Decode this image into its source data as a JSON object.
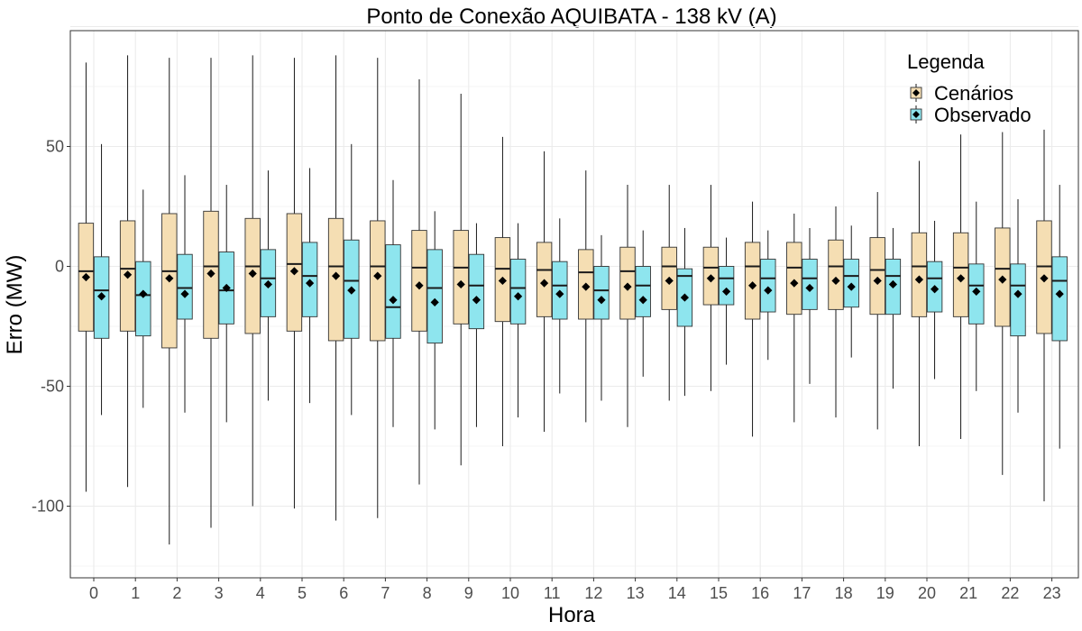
{
  "chart_data": {
    "type": "boxplot",
    "title": "Ponto de Conexão AQUIBATA - 138 kV (A)",
    "xlabel": "Hora",
    "ylabel": "Erro (MW)",
    "categories": [
      "0",
      "1",
      "2",
      "3",
      "4",
      "5",
      "6",
      "7",
      "8",
      "9",
      "10",
      "11",
      "12",
      "13",
      "14",
      "15",
      "16",
      "17",
      "18",
      "19",
      "20",
      "21",
      "22",
      "23"
    ],
    "ylim": [
      -130,
      100
    ],
    "yticks": [
      50,
      0,
      -50,
      -100
    ],
    "ytick_labels": [
      "50",
      "0",
      "-50",
      "-100"
    ],
    "grid": true,
    "legend": {
      "title": "Legenda",
      "position": "top-right"
    },
    "series": [
      {
        "name": "Cenários",
        "color": "#f5deb3",
        "whisker_high": [
          85,
          88,
          87,
          87,
          88,
          87,
          88,
          87,
          78,
          72,
          54,
          48,
          40,
          34,
          34,
          34,
          27,
          22,
          25,
          31,
          44,
          55,
          56,
          57
        ],
        "q3": [
          18,
          19,
          22,
          23,
          20,
          22,
          20,
          19,
          15,
          15,
          12,
          10,
          7,
          8,
          8,
          8,
          10,
          10,
          11,
          12,
          14,
          14,
          16,
          19
        ],
        "median": [
          -2,
          -1,
          -2,
          0,
          0,
          1,
          0,
          0,
          -0.5,
          -0.5,
          -1,
          -1.5,
          -2.5,
          -2,
          0,
          -0.5,
          0,
          -0.5,
          0,
          -1.5,
          0,
          -0.5,
          -1,
          0
        ],
        "q1": [
          -27,
          -27,
          -34,
          -30,
          -28,
          -27,
          -31,
          -31,
          -27,
          -24,
          -23,
          -21,
          -22,
          -22,
          -18,
          -16,
          -22,
          -20,
          -18,
          -20,
          -21,
          -21,
          -25,
          -28
        ],
        "whisker_low": [
          -94,
          -92,
          -116,
          -109,
          -100,
          -101,
          -106,
          -105,
          -91,
          -83,
          -75,
          -69,
          -65,
          -67,
          -56,
          -52,
          -71,
          -65,
          -63,
          -68,
          -75,
          -72,
          -87,
          -98
        ],
        "mean": [
          -4.5,
          -3.5,
          -5,
          -3,
          -3,
          -2,
          -4,
          -4,
          -8,
          -7.5,
          -6,
          -7,
          -8.5,
          -8.5,
          -6,
          -5,
          -8,
          -7,
          -6,
          -6,
          -5.5,
          -5,
          -5.5,
          -5
        ]
      },
      {
        "name": "Observado",
        "color": "#8ee5ee",
        "whisker_high": [
          51,
          32,
          38,
          34,
          40,
          41,
          51,
          36,
          23,
          18,
          18,
          20,
          13,
          15,
          16,
          12,
          15,
          16,
          17,
          16,
          19,
          27,
          28,
          34
        ],
        "q3": [
          4,
          2,
          5,
          6,
          7,
          10,
          11,
          9,
          7,
          5,
          3,
          2,
          0,
          0,
          -1,
          0,
          3,
          3,
          3,
          3,
          2,
          1,
          1,
          4
        ],
        "median": [
          -10,
          -12,
          -9,
          -10,
          -5,
          -4,
          -6,
          -17,
          -9,
          -8,
          -9,
          -8,
          -10,
          -8,
          -4,
          -5,
          -5,
          -5,
          -4,
          -4,
          -5,
          -8,
          -8,
          -6
        ],
        "q1": [
          -30,
          -29,
          -22,
          -24,
          -21,
          -21,
          -30,
          -30,
          -32,
          -26,
          -24,
          -22,
          -22,
          -21,
          -25,
          -16,
          -19,
          -18,
          -17,
          -20,
          -19,
          -24,
          -29,
          -31
        ],
        "whisker_low": [
          -62,
          -59,
          -61,
          -65,
          -56,
          -57,
          -62,
          -67,
          -68,
          -67,
          -63,
          -53,
          -56,
          -46,
          -54,
          -41,
          -39,
          -49,
          -38,
          -51,
          -47,
          -52,
          -61,
          -76
        ],
        "mean": [
          -12.5,
          -11.5,
          -11.5,
          -9,
          -7.5,
          -7,
          -10,
          -14,
          -15,
          -14,
          -12.5,
          -11.5,
          -14,
          -14,
          -13,
          -10.5,
          -10,
          -9,
          -8.5,
          -7.5,
          -9.5,
          -10.5,
          -11.5,
          -11.5
        ]
      }
    ]
  }
}
